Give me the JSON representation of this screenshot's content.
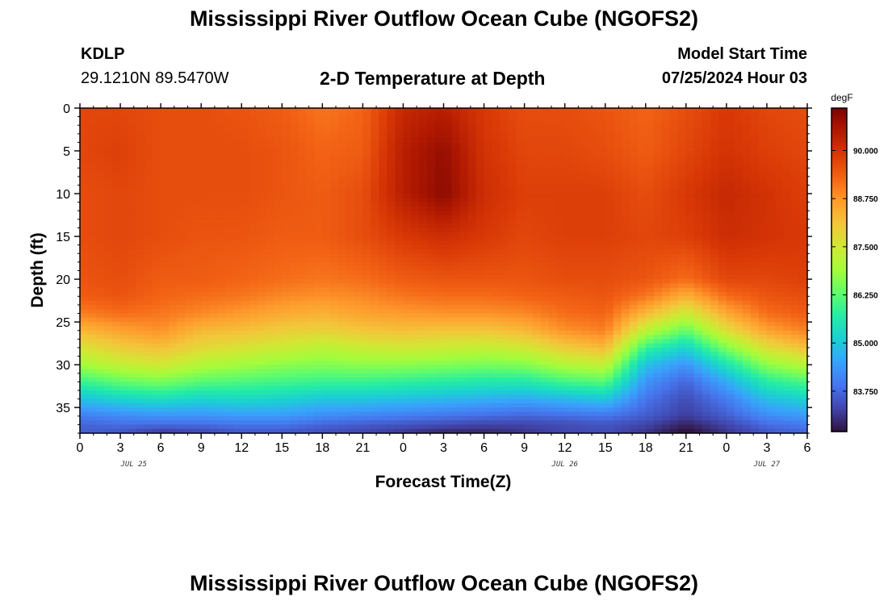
{
  "header": {
    "title": "Mississippi River Outflow Ocean Cube (NGOFS2)",
    "station_id": "KDLP",
    "station_coords": "29.1210N  89.5470W",
    "subtitle": "2-D Temperature at Depth",
    "model_start_label": "Model Start Time",
    "model_start_value": "07/25/2024 Hour 03"
  },
  "footer": {
    "title": "Mississippi River Outflow Ocean Cube (NGOFS2)"
  },
  "chart_data": {
    "type": "heatmap",
    "title": "2-D Temperature at Depth",
    "xlabel": "Forecast Time(Z)",
    "ylabel": "Depth (ft)",
    "x_tick_labels": [
      "0",
      "3",
      "6",
      "9",
      "12",
      "15",
      "18",
      "21",
      "0",
      "3",
      "6",
      "9",
      "12",
      "15",
      "18",
      "21",
      "0",
      "3",
      "6"
    ],
    "x_hours": [
      0,
      54
    ],
    "date_labels": [
      {
        "label": "JUL 25",
        "hour": 4
      },
      {
        "label": "JUL 26",
        "hour": 36
      },
      {
        "label": "JUL 27",
        "hour": 51
      }
    ],
    "y_ticks": [
      0,
      5,
      10,
      15,
      20,
      25,
      30,
      35
    ],
    "ylim": [
      0,
      38
    ],
    "y_inverted": true,
    "colorbar": {
      "unit_label": "degF",
      "ticks": [
        "83.750",
        "85.000",
        "86.250",
        "87.500",
        "88.750",
        "90.000"
      ],
      "vmin": 82.7,
      "vmax": 91.1
    },
    "colormap": [
      "#30123b",
      "#4145ab",
      "#4675ed",
      "#39a2fc",
      "#1bcfd4",
      "#24eca6",
      "#61fc6c",
      "#a4fc3b",
      "#d1e834",
      "#f3c63a",
      "#fe9b2d",
      "#f36315",
      "#d93806",
      "#b11901",
      "#7a0403"
    ],
    "time_hours": [
      0,
      3,
      6,
      9,
      12,
      15,
      18,
      21,
      24,
      27,
      30,
      33,
      36,
      39,
      42,
      45,
      48,
      51,
      54
    ],
    "depth_profiles": {
      "depths": [
        0,
        5,
        10,
        15,
        20,
        22,
        24,
        26,
        28,
        30,
        32,
        34,
        36,
        37,
        38
      ],
      "temps_by_time": [
        [
          89.7,
          89.7,
          89.6,
          89.6,
          89.5,
          89.4,
          89.0,
          88.3,
          87.6,
          86.9,
          85.9,
          84.9,
          84.0,
          83.7,
          83.6
        ],
        [
          89.7,
          89.8,
          89.7,
          89.7,
          89.6,
          89.5,
          89.2,
          88.6,
          88.0,
          87.3,
          86.3,
          85.2,
          84.2,
          83.8,
          83.5
        ],
        [
          89.6,
          89.6,
          89.6,
          89.6,
          89.4,
          89.3,
          89.1,
          88.8,
          88.2,
          87.5,
          86.5,
          85.4,
          84.3,
          83.8,
          83.1
        ],
        [
          89.6,
          89.6,
          89.6,
          89.5,
          89.4,
          89.2,
          88.9,
          88.3,
          87.8,
          87.1,
          86.2,
          85.2,
          84.3,
          83.8,
          83.3
        ],
        [
          89.5,
          89.6,
          89.6,
          89.5,
          89.3,
          89.1,
          88.7,
          88.2,
          87.6,
          86.9,
          86.1,
          85.3,
          84.4,
          83.9,
          83.5
        ],
        [
          89.4,
          89.5,
          89.5,
          89.4,
          89.2,
          88.9,
          88.5,
          88.0,
          87.4,
          86.7,
          86.0,
          85.2,
          84.4,
          83.9,
          83.5
        ],
        [
          89.1,
          89.3,
          89.4,
          89.4,
          89.1,
          88.8,
          88.4,
          87.9,
          87.2,
          86.6,
          85.9,
          85.0,
          84.2,
          83.7,
          83.4
        ],
        [
          89.3,
          89.4,
          89.6,
          89.6,
          89.2,
          88.9,
          88.6,
          88.1,
          87.4,
          86.7,
          85.9,
          85.0,
          84.1,
          83.6,
          83.3
        ],
        [
          90.2,
          90.4,
          90.4,
          89.9,
          89.4,
          89.1,
          88.7,
          88.2,
          87.5,
          86.7,
          85.8,
          84.9,
          84.0,
          83.5,
          83.1
        ],
        [
          90.4,
          90.8,
          90.9,
          90.1,
          89.5,
          89.2,
          88.8,
          88.1,
          87.4,
          86.6,
          85.7,
          84.8,
          83.9,
          83.4,
          82.9
        ],
        [
          89.9,
          90.0,
          90.1,
          89.9,
          89.5,
          89.2,
          88.8,
          88.1,
          87.3,
          86.5,
          85.6,
          84.7,
          83.8,
          83.3,
          82.9
        ],
        [
          89.6,
          89.7,
          89.8,
          89.7,
          89.5,
          89.3,
          88.9,
          88.3,
          87.5,
          86.6,
          85.6,
          84.6,
          83.7,
          83.3,
          83.1
        ],
        [
          89.6,
          89.7,
          89.8,
          89.8,
          89.6,
          89.4,
          89.2,
          88.8,
          88.0,
          87.1,
          86.0,
          84.8,
          83.8,
          83.4,
          83.3
        ],
        [
          89.5,
          89.6,
          89.8,
          89.8,
          89.6,
          89.5,
          89.3,
          89.0,
          88.3,
          87.3,
          86.2,
          85.0,
          83.9,
          83.5,
          83.4
        ],
        [
          89.3,
          89.4,
          89.6,
          89.7,
          89.5,
          89.1,
          88.3,
          87.2,
          85.9,
          84.9,
          84.3,
          83.9,
          83.6,
          83.3,
          83.1
        ],
        [
          89.6,
          89.7,
          89.9,
          89.8,
          89.2,
          88.4,
          87.4,
          86.3,
          85.2,
          84.3,
          83.7,
          83.4,
          83.2,
          82.9,
          82.6
        ],
        [
          89.9,
          90.0,
          90.2,
          90.1,
          89.7,
          89.2,
          88.5,
          87.7,
          86.6,
          85.5,
          84.6,
          84.0,
          83.6,
          83.3,
          83.1
        ],
        [
          89.7,
          89.8,
          90.0,
          90.0,
          89.7,
          89.5,
          89.2,
          88.6,
          87.7,
          86.7,
          85.7,
          84.9,
          84.2,
          83.8,
          83.5
        ],
        [
          89.6,
          89.7,
          89.8,
          89.9,
          89.8,
          89.6,
          89.4,
          89.0,
          88.2,
          87.2,
          86.1,
          85.2,
          84.4,
          84.0,
          83.7
        ]
      ]
    }
  }
}
